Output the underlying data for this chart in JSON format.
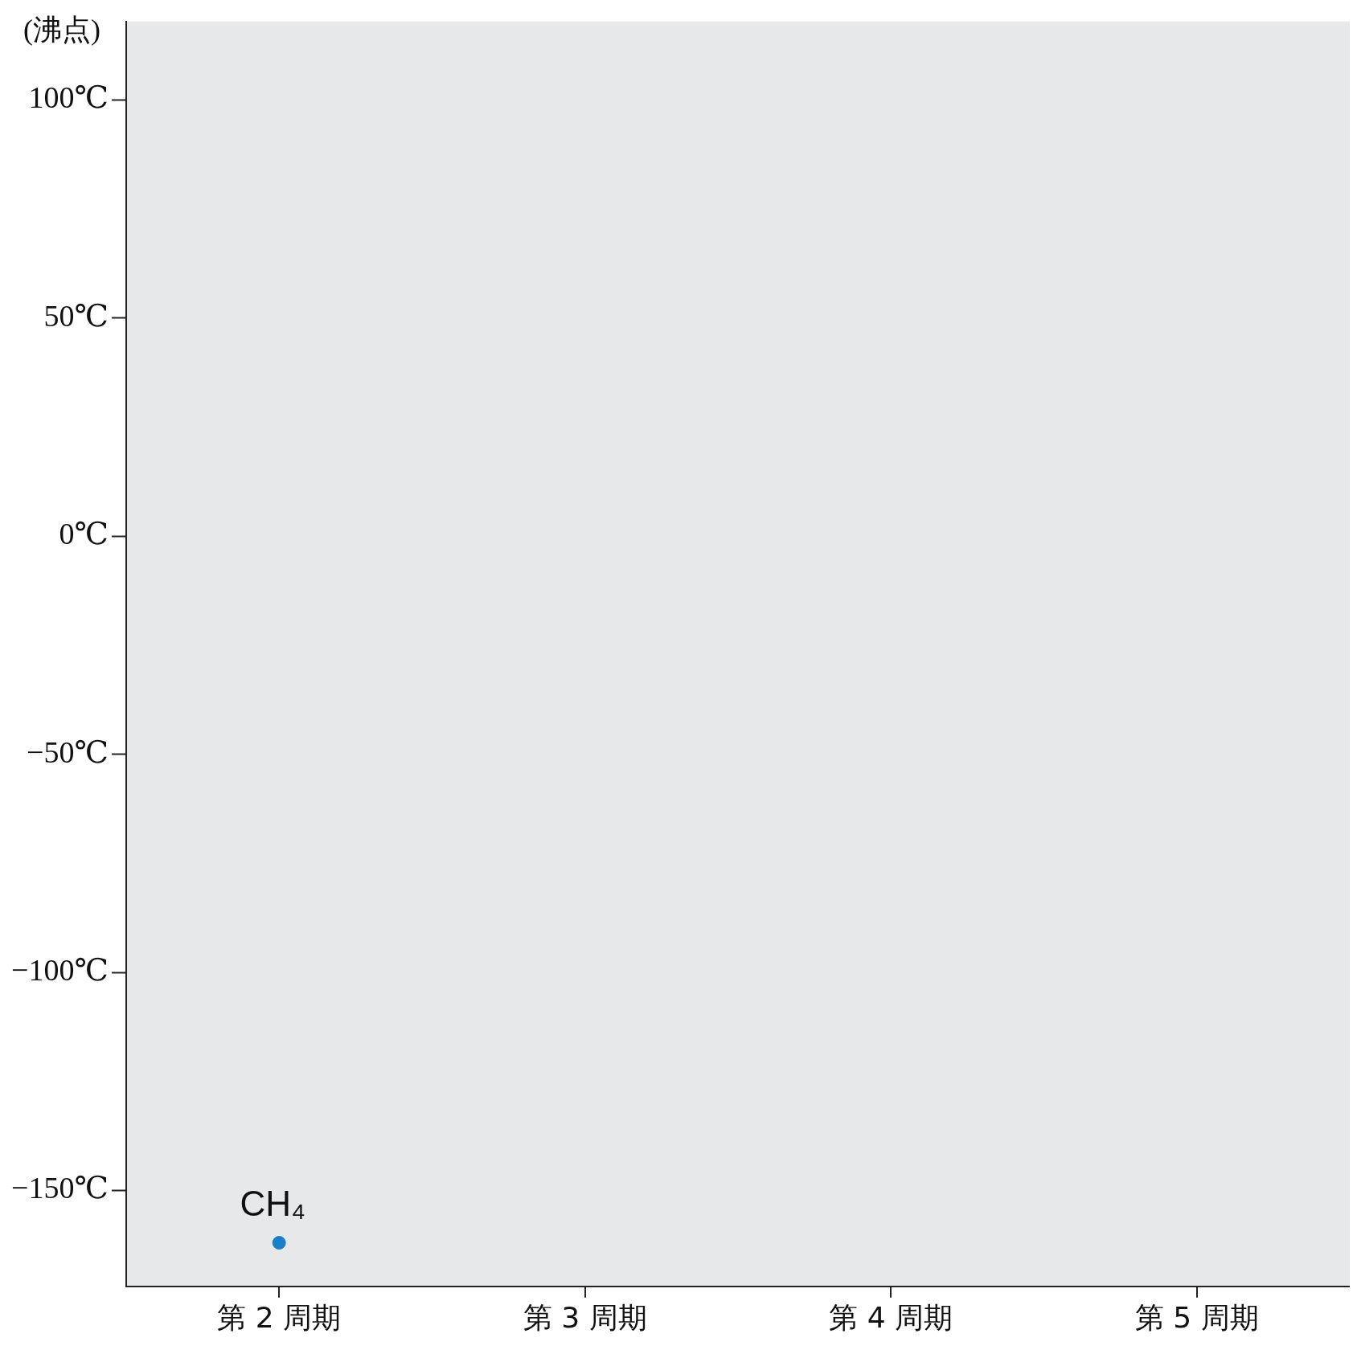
{
  "chart_data": {
    "type": "scatter",
    "ylabel": "(沸点)",
    "categories": [
      "第 2 周期",
      "第 3 周期",
      "第 4 周期",
      "第 5 周期"
    ],
    "series": [
      {
        "color": "#1a7fc9",
        "values": [
          -162,
          null,
          null,
          null
        ]
      }
    ],
    "ylim": [
      -172,
      118
    ],
    "yticks": [
      {
        "value": -150,
        "label": "−150℃"
      },
      {
        "value": -100,
        "label": "−100℃"
      },
      {
        "value": -50,
        "label": "−50℃"
      },
      {
        "value": 0,
        "label": "0℃"
      },
      {
        "value": 50,
        "label": "50℃"
      },
      {
        "value": 100,
        "label": "100℃"
      }
    ],
    "annotations": [
      {
        "text": "CH₄",
        "x": "第 2 周期",
        "y": -162
      }
    ],
    "marker": "circle",
    "grid": false,
    "legend": false
  }
}
